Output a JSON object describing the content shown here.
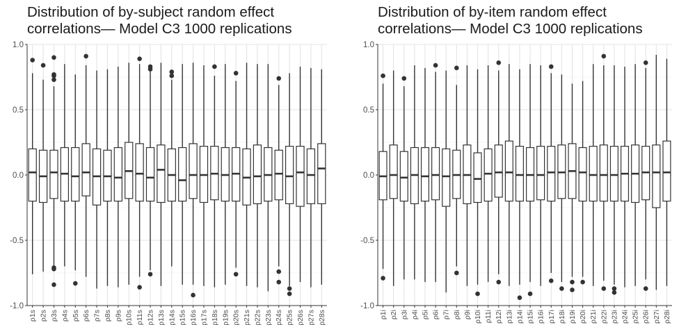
{
  "chart_data": [
    {
      "type": "boxplot",
      "title_lines": [
        "Distribution of by-subject random effect",
        "correlations— Model C3 1000 replications"
      ],
      "xlabel": "",
      "ylabel": "",
      "ylim": [
        -1.0,
        1.0
      ],
      "y_ticks": [
        1.0,
        0.5,
        0.0,
        -0.5,
        -1.0
      ],
      "y_tick_labels": [
        "1.0",
        "0.5",
        "0.0",
        "-0.5",
        "-1.0"
      ],
      "grid": true,
      "legend": "none",
      "categories": [
        "ρ1s",
        "ρ2s",
        "ρ3s",
        "ρ4s",
        "ρ5s",
        "ρ6s",
        "ρ7s",
        "ρ8s",
        "ρ9s",
        "ρ10s",
        "ρ11s",
        "ρ12s",
        "ρ13s",
        "ρ14s",
        "ρ15s",
        "ρ16s",
        "ρ17s",
        "ρ18s",
        "ρ19s",
        "ρ20s",
        "ρ21s",
        "ρ22s",
        "ρ23s",
        "ρ24s",
        "ρ25s",
        "ρ26s",
        "ρ27s",
        "ρ28s"
      ],
      "boxes": [
        {
          "whisker_low": -0.76,
          "q1": -0.2,
          "median": 0.02,
          "q3": 0.2,
          "whisker_high": 0.78,
          "outliers": [
            0.88
          ]
        },
        {
          "whisker_low": -0.74,
          "q1": -0.21,
          "median": -0.01,
          "q3": 0.19,
          "whisker_high": 0.73,
          "outliers": [
            0.84
          ]
        },
        {
          "whisker_low": -0.7,
          "q1": -0.18,
          "median": 0.02,
          "q3": 0.19,
          "whisker_high": 0.68,
          "outliers": [
            0.9,
            0.77,
            0.76,
            0.73,
            -0.71,
            -0.72,
            -0.84
          ]
        },
        {
          "whisker_low": -0.7,
          "q1": -0.2,
          "median": 0.01,
          "q3": 0.21,
          "whisker_high": 0.85
        },
        {
          "whisker_low": -0.73,
          "q1": -0.2,
          "median": -0.01,
          "q3": 0.21,
          "whisker_high": 0.77,
          "outliers": [
            -0.83
          ]
        },
        {
          "whisker_low": -0.78,
          "q1": -0.16,
          "median": 0.02,
          "q3": 0.24,
          "whisker_high": 0.84,
          "outliers": [
            0.91
          ]
        },
        {
          "whisker_low": -0.87,
          "q1": -0.23,
          "median": -0.01,
          "q3": 0.2,
          "whisker_high": 0.8
        },
        {
          "whisker_low": -0.85,
          "q1": -0.2,
          "median": -0.01,
          "q3": 0.19,
          "whisker_high": 0.81
        },
        {
          "whisker_low": -0.86,
          "q1": -0.2,
          "median": -0.02,
          "q3": 0.21,
          "whisker_high": 0.83
        },
        {
          "whisker_low": -0.84,
          "q1": -0.18,
          "median": 0.03,
          "q3": 0.25,
          "whisker_high": 0.86
        },
        {
          "whisker_low": -0.78,
          "q1": -0.2,
          "median": 0.01,
          "q3": 0.24,
          "whisker_high": 0.85,
          "outliers": [
            0.89,
            -0.86
          ]
        },
        {
          "whisker_low": -0.73,
          "q1": -0.2,
          "median": -0.02,
          "q3": 0.21,
          "whisker_high": 0.8,
          "outliers": [
            0.83,
            0.81,
            -0.76
          ]
        },
        {
          "whisker_low": -0.85,
          "q1": -0.21,
          "median": 0.04,
          "q3": 0.23,
          "whisker_high": 0.86
        },
        {
          "whisker_low": -0.7,
          "q1": -0.2,
          "median": 0.0,
          "q3": 0.2,
          "whisker_high": 0.73,
          "outliers": [
            0.79,
            0.76
          ]
        },
        {
          "whisker_low": -0.84,
          "q1": -0.2,
          "median": -0.04,
          "q3": 0.21,
          "whisker_high": 0.85
        },
        {
          "whisker_low": -0.84,
          "q1": -0.18,
          "median": 0.0,
          "q3": 0.24,
          "whisker_high": 0.86,
          "outliers": [
            -0.92
          ]
        },
        {
          "whisker_low": -0.85,
          "q1": -0.21,
          "median": 0.0,
          "q3": 0.22,
          "whisker_high": 0.84
        },
        {
          "whisker_low": -0.86,
          "q1": -0.19,
          "median": 0.01,
          "q3": 0.22,
          "whisker_high": 0.76,
          "outliers": [
            0.83
          ]
        },
        {
          "whisker_low": -0.84,
          "q1": -0.2,
          "median": 0.0,
          "q3": 0.21,
          "whisker_high": 0.85
        },
        {
          "whisker_low": -0.71,
          "q1": -0.2,
          "median": 0.01,
          "q3": 0.21,
          "whisker_high": 0.72,
          "outliers": [
            0.78,
            -0.76
          ]
        },
        {
          "whisker_low": -0.85,
          "q1": -0.23,
          "median": -0.02,
          "q3": 0.2,
          "whisker_high": 0.86
        },
        {
          "whisker_low": -0.86,
          "q1": -0.22,
          "median": -0.01,
          "q3": 0.23,
          "whisker_high": 0.85
        },
        {
          "whisker_low": -0.89,
          "q1": -0.2,
          "median": 0.0,
          "q3": 0.21,
          "whisker_high": 0.85
        },
        {
          "whisker_low": -0.7,
          "q1": -0.19,
          "median": 0.01,
          "q3": 0.19,
          "whisker_high": 0.69,
          "outliers": [
            0.74,
            -0.74,
            -0.82
          ]
        },
        {
          "whisker_low": -0.85,
          "q1": -0.22,
          "median": -0.01,
          "q3": 0.22,
          "whisker_high": 0.78,
          "outliers": [
            -0.87,
            -0.91
          ]
        },
        {
          "whisker_low": -0.82,
          "q1": -0.24,
          "median": 0.02,
          "q3": 0.22,
          "whisker_high": 0.83
        },
        {
          "whisker_low": -0.86,
          "q1": -0.22,
          "median": 0.0,
          "q3": 0.2,
          "whisker_high": 0.82
        },
        {
          "whisker_low": -0.84,
          "q1": -0.22,
          "median": 0.05,
          "q3": 0.24,
          "whisker_high": 0.81
        }
      ]
    },
    {
      "type": "boxplot",
      "title_lines": [
        "Distribution of by-item random effect",
        "correlations— Model C3 1000 replications"
      ],
      "xlabel": "",
      "ylabel": "",
      "ylim": [
        -1.0,
        1.0
      ],
      "y_ticks": [
        1.0,
        0.5,
        0.0,
        -0.5,
        -1.0
      ],
      "y_tick_labels": [
        "1.0",
        "0.5",
        "0.0",
        "-0.5",
        "-1.0"
      ],
      "grid": true,
      "legend": "none",
      "categories": [
        "ρ1i",
        "ρ2i",
        "ρ3i",
        "ρ4i",
        "ρ5i",
        "ρ6i",
        "ρ7i",
        "ρ8i",
        "ρ9i",
        "ρ10i",
        "ρ11i",
        "ρ12i",
        "ρ13i",
        "ρ14i",
        "ρ15i",
        "ρ16i",
        "ρ17i",
        "ρ18i",
        "ρ19i",
        "ρ20i",
        "ρ21i",
        "ρ22i",
        "ρ23i",
        "ρ24i",
        "ρ25i",
        "ρ26i",
        "ρ27i",
        "ρ28i"
      ],
      "boxes": [
        {
          "whisker_low": -0.72,
          "q1": -0.19,
          "median": -0.01,
          "q3": 0.18,
          "whisker_high": 0.7,
          "outliers": [
            0.76,
            -0.79
          ]
        },
        {
          "whisker_low": -0.85,
          "q1": -0.18,
          "median": 0.0,
          "q3": 0.23,
          "whisker_high": 0.8
        },
        {
          "whisker_low": -0.8,
          "q1": -0.2,
          "median": -0.02,
          "q3": 0.18,
          "whisker_high": 0.68,
          "outliers": [
            0.74
          ]
        },
        {
          "whisker_low": -0.8,
          "q1": -0.22,
          "median": 0.0,
          "q3": 0.21,
          "whisker_high": 0.84
        },
        {
          "whisker_low": -0.82,
          "q1": -0.2,
          "median": -0.01,
          "q3": 0.21,
          "whisker_high": 0.82
        },
        {
          "whisker_low": -0.82,
          "q1": -0.19,
          "median": 0.0,
          "q3": 0.21,
          "whisker_high": 0.79,
          "outliers": [
            0.84
          ]
        },
        {
          "whisker_low": -0.9,
          "q1": -0.24,
          "median": -0.01,
          "q3": 0.2,
          "whisker_high": 0.8
        },
        {
          "whisker_low": -0.7,
          "q1": -0.18,
          "median": 0.0,
          "q3": 0.19,
          "whisker_high": 0.69,
          "outliers": [
            0.82,
            -0.75
          ]
        },
        {
          "whisker_low": -0.85,
          "q1": -0.22,
          "median": 0.0,
          "q3": 0.23,
          "whisker_high": 0.84
        },
        {
          "whisker_low": -0.84,
          "q1": -0.21,
          "median": -0.03,
          "q3": 0.17,
          "whisker_high": 0.81,
          "outliers": [
            -0.91
          ]
        },
        {
          "whisker_low": -0.82,
          "q1": -0.2,
          "median": 0.01,
          "q3": 0.2,
          "whisker_high": 0.84
        },
        {
          "whisker_low": -0.76,
          "q1": -0.17,
          "median": 0.02,
          "q3": 0.23,
          "whisker_high": 0.8,
          "outliers": [
            0.86,
            -0.82
          ]
        },
        {
          "whisker_low": -0.85,
          "q1": -0.2,
          "median": 0.02,
          "q3": 0.26,
          "whisker_high": 0.85
        },
        {
          "whisker_low": -0.84,
          "q1": -0.2,
          "median": 0.0,
          "q3": 0.22,
          "whisker_high": 0.81,
          "outliers": [
            -0.94
          ]
        },
        {
          "whisker_low": -0.82,
          "q1": -0.2,
          "median": 0.0,
          "q3": 0.21,
          "whisker_high": 0.85,
          "outliers": [
            -0.91
          ]
        },
        {
          "whisker_low": -0.85,
          "q1": -0.19,
          "median": 0.0,
          "q3": 0.22,
          "whisker_high": 0.84
        },
        {
          "whisker_low": -0.75,
          "q1": -0.2,
          "median": 0.02,
          "q3": 0.22,
          "whisker_high": 0.78,
          "outliers": [
            0.83,
            -0.81
          ]
        },
        {
          "whisker_low": -0.82,
          "q1": -0.18,
          "median": 0.02,
          "q3": 0.23,
          "whisker_high": 0.77,
          "outliers": [
            -0.87
          ]
        },
        {
          "whisker_low": -0.78,
          "q1": -0.18,
          "median": 0.03,
          "q3": 0.24,
          "whisker_high": 0.7,
          "outliers": [
            -0.82,
            -0.88
          ]
        },
        {
          "whisker_low": -0.78,
          "q1": -0.2,
          "median": 0.02,
          "q3": 0.21,
          "whisker_high": 0.72,
          "outliers": [
            -0.82
          ]
        },
        {
          "whisker_low": -0.85,
          "q1": -0.2,
          "median": 0.0,
          "q3": 0.22,
          "whisker_high": 0.85
        },
        {
          "whisker_low": -0.81,
          "q1": -0.2,
          "median": 0.0,
          "q3": 0.23,
          "whisker_high": 0.84,
          "outliers": [
            0.91,
            -0.87
          ]
        },
        {
          "whisker_low": -0.84,
          "q1": -0.2,
          "median": 0.0,
          "q3": 0.22,
          "whisker_high": 0.84,
          "outliers": [
            -0.87,
            -0.9
          ]
        },
        {
          "whisker_low": -0.86,
          "q1": -0.2,
          "median": 0.01,
          "q3": 0.22,
          "whisker_high": 0.83
        },
        {
          "whisker_low": -0.85,
          "q1": -0.21,
          "median": 0.01,
          "q3": 0.23,
          "whisker_high": 0.85
        },
        {
          "whisker_low": -0.8,
          "q1": -0.19,
          "median": 0.02,
          "q3": 0.22,
          "whisker_high": 0.82,
          "outliers": [
            0.86,
            -0.87
          ]
        },
        {
          "whisker_low": -0.88,
          "q1": -0.25,
          "median": 0.02,
          "q3": 0.23,
          "whisker_high": 0.92
        },
        {
          "whisker_low": -0.85,
          "q1": -0.2,
          "median": 0.02,
          "q3": 0.26,
          "whisker_high": 0.89
        }
      ]
    }
  ]
}
